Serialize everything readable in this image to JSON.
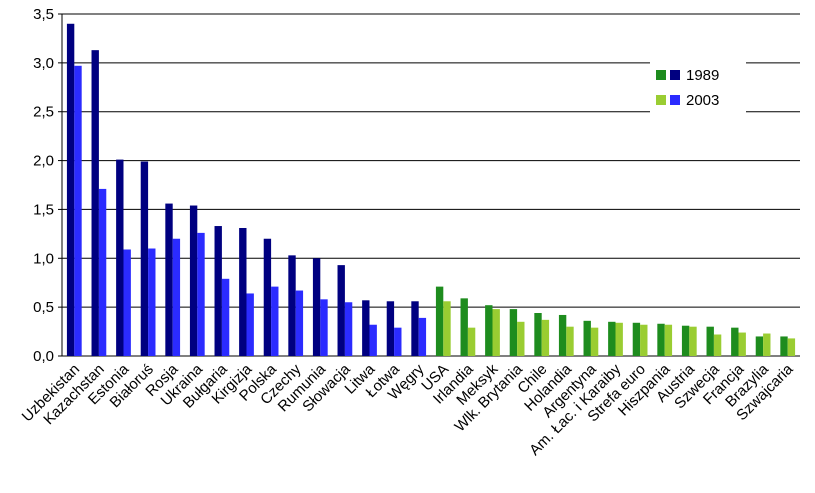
{
  "chart_data": {
    "type": "bar",
    "categories": [
      "Uzbekistan",
      "Kazachstan",
      "Estonia",
      "Białoruś",
      "Rosja",
      "Ukraina",
      "Bułgaria",
      "Kirgizja",
      "Polska",
      "Czechy",
      "Rumunia",
      "Słowacja",
      "Litwa",
      "Łotwa",
      "Węgry",
      "USA",
      "Irlandia",
      "Meksyk",
      "Wlk. Brytania",
      "Chile",
      "Holandia",
      "Argentyna",
      "Am. Łac. i Karaiby",
      "Strefa euro",
      "Hiszpania",
      "Austria",
      "Szwecja",
      "Francja",
      "Brazylia",
      "Szwajcaria"
    ],
    "series": [
      {
        "name": "1989",
        "values": [
          3.4,
          3.13,
          2.01,
          1.99,
          1.56,
          1.54,
          1.33,
          1.31,
          1.2,
          1.03,
          1.0,
          0.93,
          0.57,
          0.56,
          0.56,
          0.71,
          0.59,
          0.52,
          0.48,
          0.44,
          0.42,
          0.36,
          0.35,
          0.34,
          0.33,
          0.31,
          0.3,
          0.29,
          0.2,
          0.2
        ],
        "colors": [
          "#000080",
          "#000080",
          "#000080",
          "#000080",
          "#000080",
          "#000080",
          "#000080",
          "#000080",
          "#000080",
          "#000080",
          "#000080",
          "#000080",
          "#000080",
          "#000080",
          "#000080",
          "#1e8c1e",
          "#1e8c1e",
          "#1e8c1e",
          "#1e8c1e",
          "#1e8c1e",
          "#1e8c1e",
          "#1e8c1e",
          "#1e8c1e",
          "#1e8c1e",
          "#1e8c1e",
          "#1e8c1e",
          "#1e8c1e",
          "#1e8c1e",
          "#1e8c1e",
          "#1e8c1e"
        ]
      },
      {
        "name": "2003",
        "values": [
          2.97,
          1.71,
          1.09,
          1.1,
          1.2,
          1.26,
          0.79,
          0.64,
          0.71,
          0.67,
          0.58,
          0.55,
          0.32,
          0.29,
          0.39,
          0.56,
          0.29,
          0.48,
          0.35,
          0.37,
          0.3,
          0.29,
          0.34,
          0.32,
          0.32,
          0.3,
          0.22,
          0.24,
          0.23,
          0.18
        ],
        "colors": [
          "#2b2bff",
          "#2b2bff",
          "#2b2bff",
          "#2b2bff",
          "#2b2bff",
          "#2b2bff",
          "#2b2bff",
          "#2b2bff",
          "#2b2bff",
          "#2b2bff",
          "#2b2bff",
          "#2b2bff",
          "#2b2bff",
          "#2b2bff",
          "#2b2bff",
          "#9acd32",
          "#9acd32",
          "#9acd32",
          "#9acd32",
          "#9acd32",
          "#9acd32",
          "#9acd32",
          "#9acd32",
          "#9acd32",
          "#9acd32",
          "#9acd32",
          "#9acd32",
          "#9acd32",
          "#9acd32",
          "#9acd32"
        ]
      }
    ],
    "ylim": [
      0,
      3.5
    ],
    "yticks": [
      {
        "value": 0,
        "label": "0,0"
      },
      {
        "value": 0.5,
        "label": "0,5"
      },
      {
        "value": 1,
        "label": "1,0"
      },
      {
        "value": 1.5,
        "label": "1,5"
      },
      {
        "value": 2,
        "label": "2,0"
      },
      {
        "value": 2.5,
        "label": "2,5"
      },
      {
        "value": 3,
        "label": "3,0"
      },
      {
        "value": 3.5,
        "label": "3,5"
      }
    ],
    "grid": true,
    "legend": "upper right"
  }
}
